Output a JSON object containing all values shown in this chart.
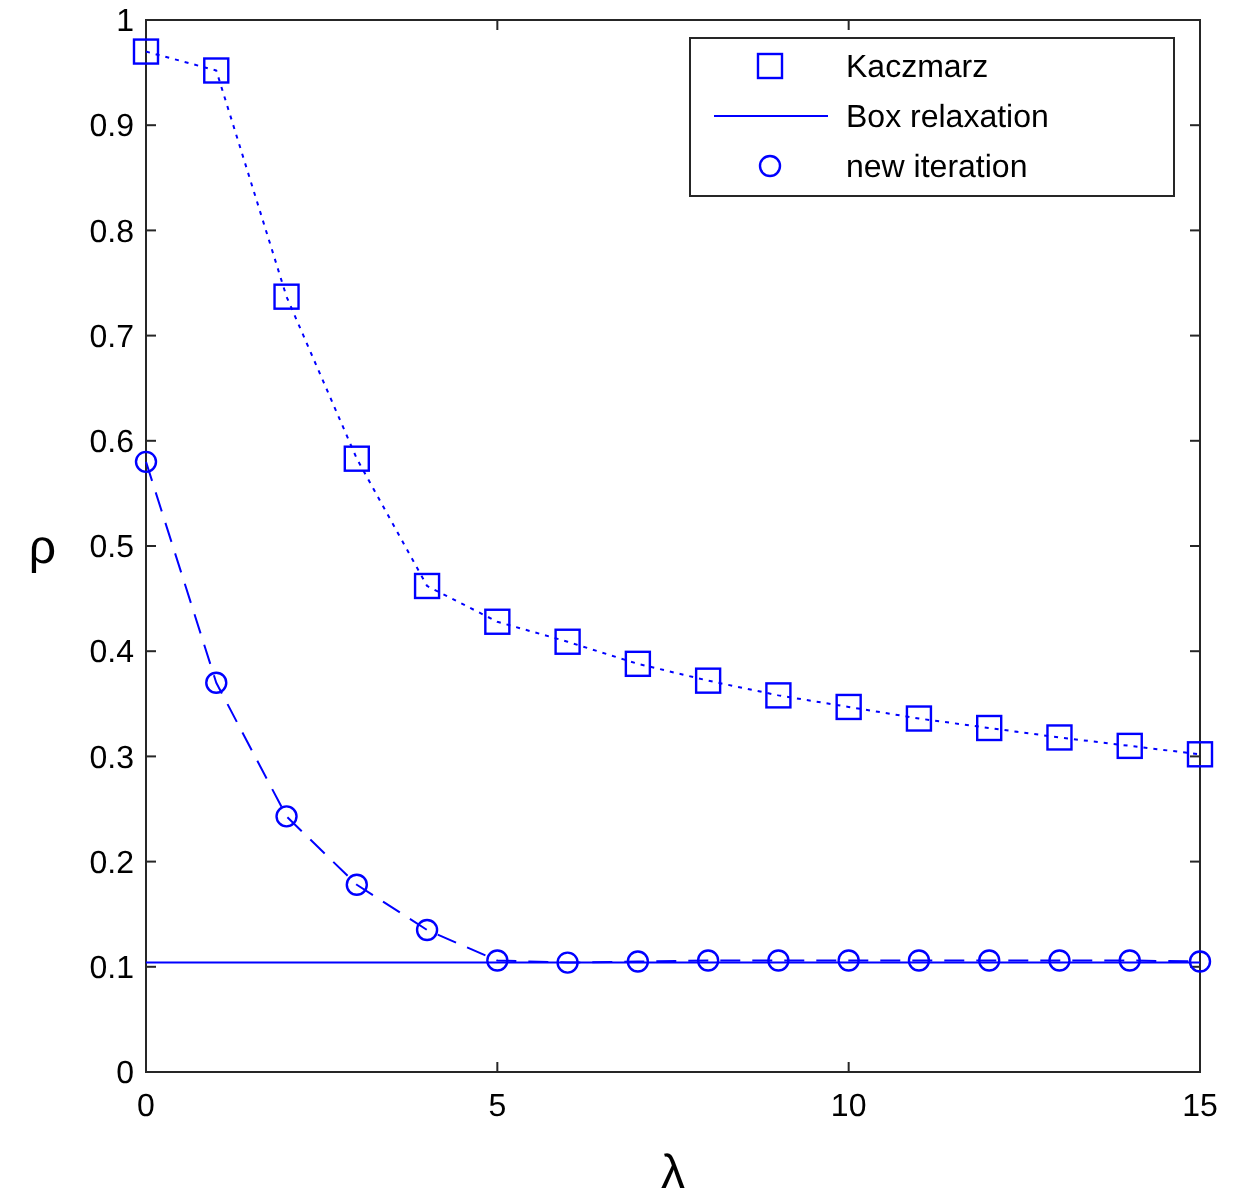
{
  "chart_data": {
    "type": "line",
    "xlabel": "λ",
    "ylabel": "ρ",
    "x": [
      0,
      1,
      2,
      3,
      4,
      5,
      6,
      7,
      8,
      9,
      10,
      11,
      12,
      13,
      14,
      15
    ],
    "xlim": [
      0,
      15
    ],
    "xticks": [
      0,
      5,
      10,
      15
    ],
    "ylim": [
      0,
      1
    ],
    "yticks": [
      0,
      0.1,
      0.2,
      0.3,
      0.4,
      0.5,
      0.6,
      0.7,
      0.8,
      0.9,
      1
    ],
    "legend": "top right",
    "grid": false,
    "series": [
      {
        "name": "Kaczmarz",
        "color": "#0000ff",
        "marker": "square",
        "line_style": "dotted",
        "values": [
          0.97,
          0.952,
          0.737,
          0.583,
          0.462,
          0.428,
          0.409,
          0.388,
          0.372,
          0.358,
          0.347,
          0.336,
          0.327,
          0.318,
          0.31,
          0.302
        ]
      },
      {
        "name": "Box relaxation",
        "color": "#0000ff",
        "marker": "none",
        "line_style": "solid",
        "x": [
          0,
          15
        ],
        "values": [
          0.104,
          0.104
        ]
      },
      {
        "name": "new iteration",
        "color": "#0000ff",
        "marker": "circle",
        "line_style": "dashed",
        "values": [
          0.58,
          0.37,
          0.243,
          0.178,
          0.135,
          0.106,
          0.104,
          0.105,
          0.106,
          0.106,
          0.106,
          0.106,
          0.106,
          0.106,
          0.106,
          0.105
        ]
      }
    ]
  }
}
